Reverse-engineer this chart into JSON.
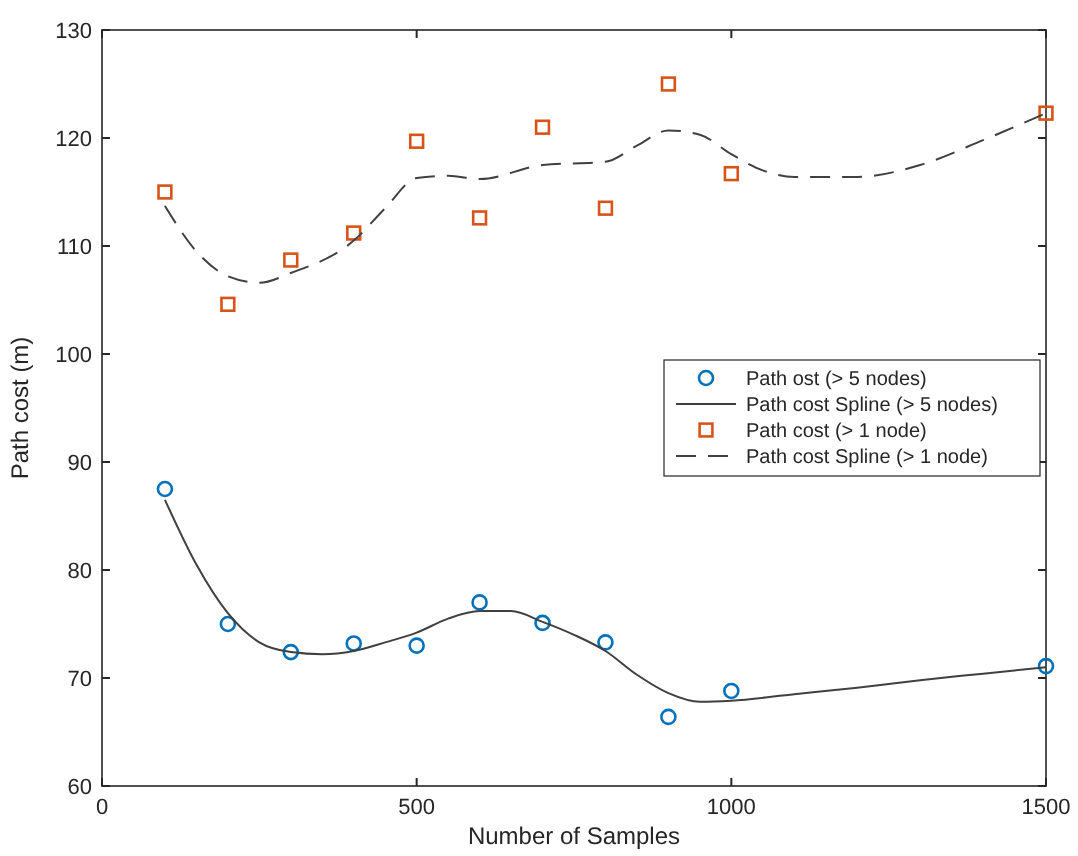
{
  "chart_data": {
    "type": "scatter",
    "xlabel": "Number of Samples",
    "ylabel": "Path cost (m)",
    "xlim": [
      0,
      1500
    ],
    "ylim": [
      60,
      130
    ],
    "xticks": [
      0,
      500,
      1000,
      1500
    ],
    "yticks": [
      60,
      70,
      80,
      90,
      100,
      110,
      120,
      130
    ],
    "grid": false,
    "legend": "right",
    "series": [
      {
        "name": "Path ost (> 5 nodes)",
        "marker": "circle",
        "color": "#0072bd",
        "x": [
          100,
          200,
          300,
          400,
          500,
          600,
          700,
          800,
          900,
          1000,
          1500
        ],
        "values": [
          87.5,
          75,
          72.4,
          73.2,
          73,
          77,
          75.1,
          73.3,
          66.4,
          68.8,
          71.1
        ]
      },
      {
        "name": "Path cost Spline (> 5 nodes)",
        "type": "line",
        "line_style": "solid",
        "color": "#404040",
        "x": [
          100,
          150,
          200,
          250,
          300,
          350,
          400,
          450,
          500,
          550,
          600,
          650,
          700,
          750,
          800,
          850,
          900,
          950,
          1000,
          1100,
          1200,
          1300,
          1400,
          1500
        ],
        "values": [
          86.5,
          80.5,
          76,
          73.3,
          72.4,
          72.2,
          72.5,
          73.3,
          74.2,
          75.5,
          76.2,
          76.2,
          75.2,
          74,
          72.5,
          70.3,
          68.6,
          67.8,
          67.9,
          68.5,
          69.1,
          69.8,
          70.4,
          71
        ]
      },
      {
        "name": "Path cost (> 1 node)",
        "marker": "square",
        "color": "#d95319",
        "x": [
          100,
          200,
          300,
          400,
          500,
          600,
          700,
          800,
          900,
          1000,
          1500
        ],
        "values": [
          115,
          104.6,
          108.7,
          111.2,
          119.7,
          112.6,
          121,
          113.5,
          125,
          116.7,
          122.3
        ]
      },
      {
        "name": "Path cost Spline (> 1 node)",
        "type": "line",
        "line_style": "dashed",
        "color": "#404040",
        "x": [
          100,
          150,
          200,
          250,
          300,
          400,
          450,
          500,
          550,
          600,
          700,
          800,
          850,
          900,
          950,
          1000,
          1050,
          1100,
          1200,
          1300,
          1400,
          1500
        ],
        "values": [
          113.7,
          109.5,
          107.2,
          106.6,
          107.5,
          110.5,
          113.5,
          116.3,
          116.5,
          116.2,
          117.5,
          117.8,
          119.3,
          120.7,
          120.3,
          118.5,
          117,
          116.4,
          116.4,
          117.5,
          119.8,
          122.3
        ]
      }
    ]
  }
}
